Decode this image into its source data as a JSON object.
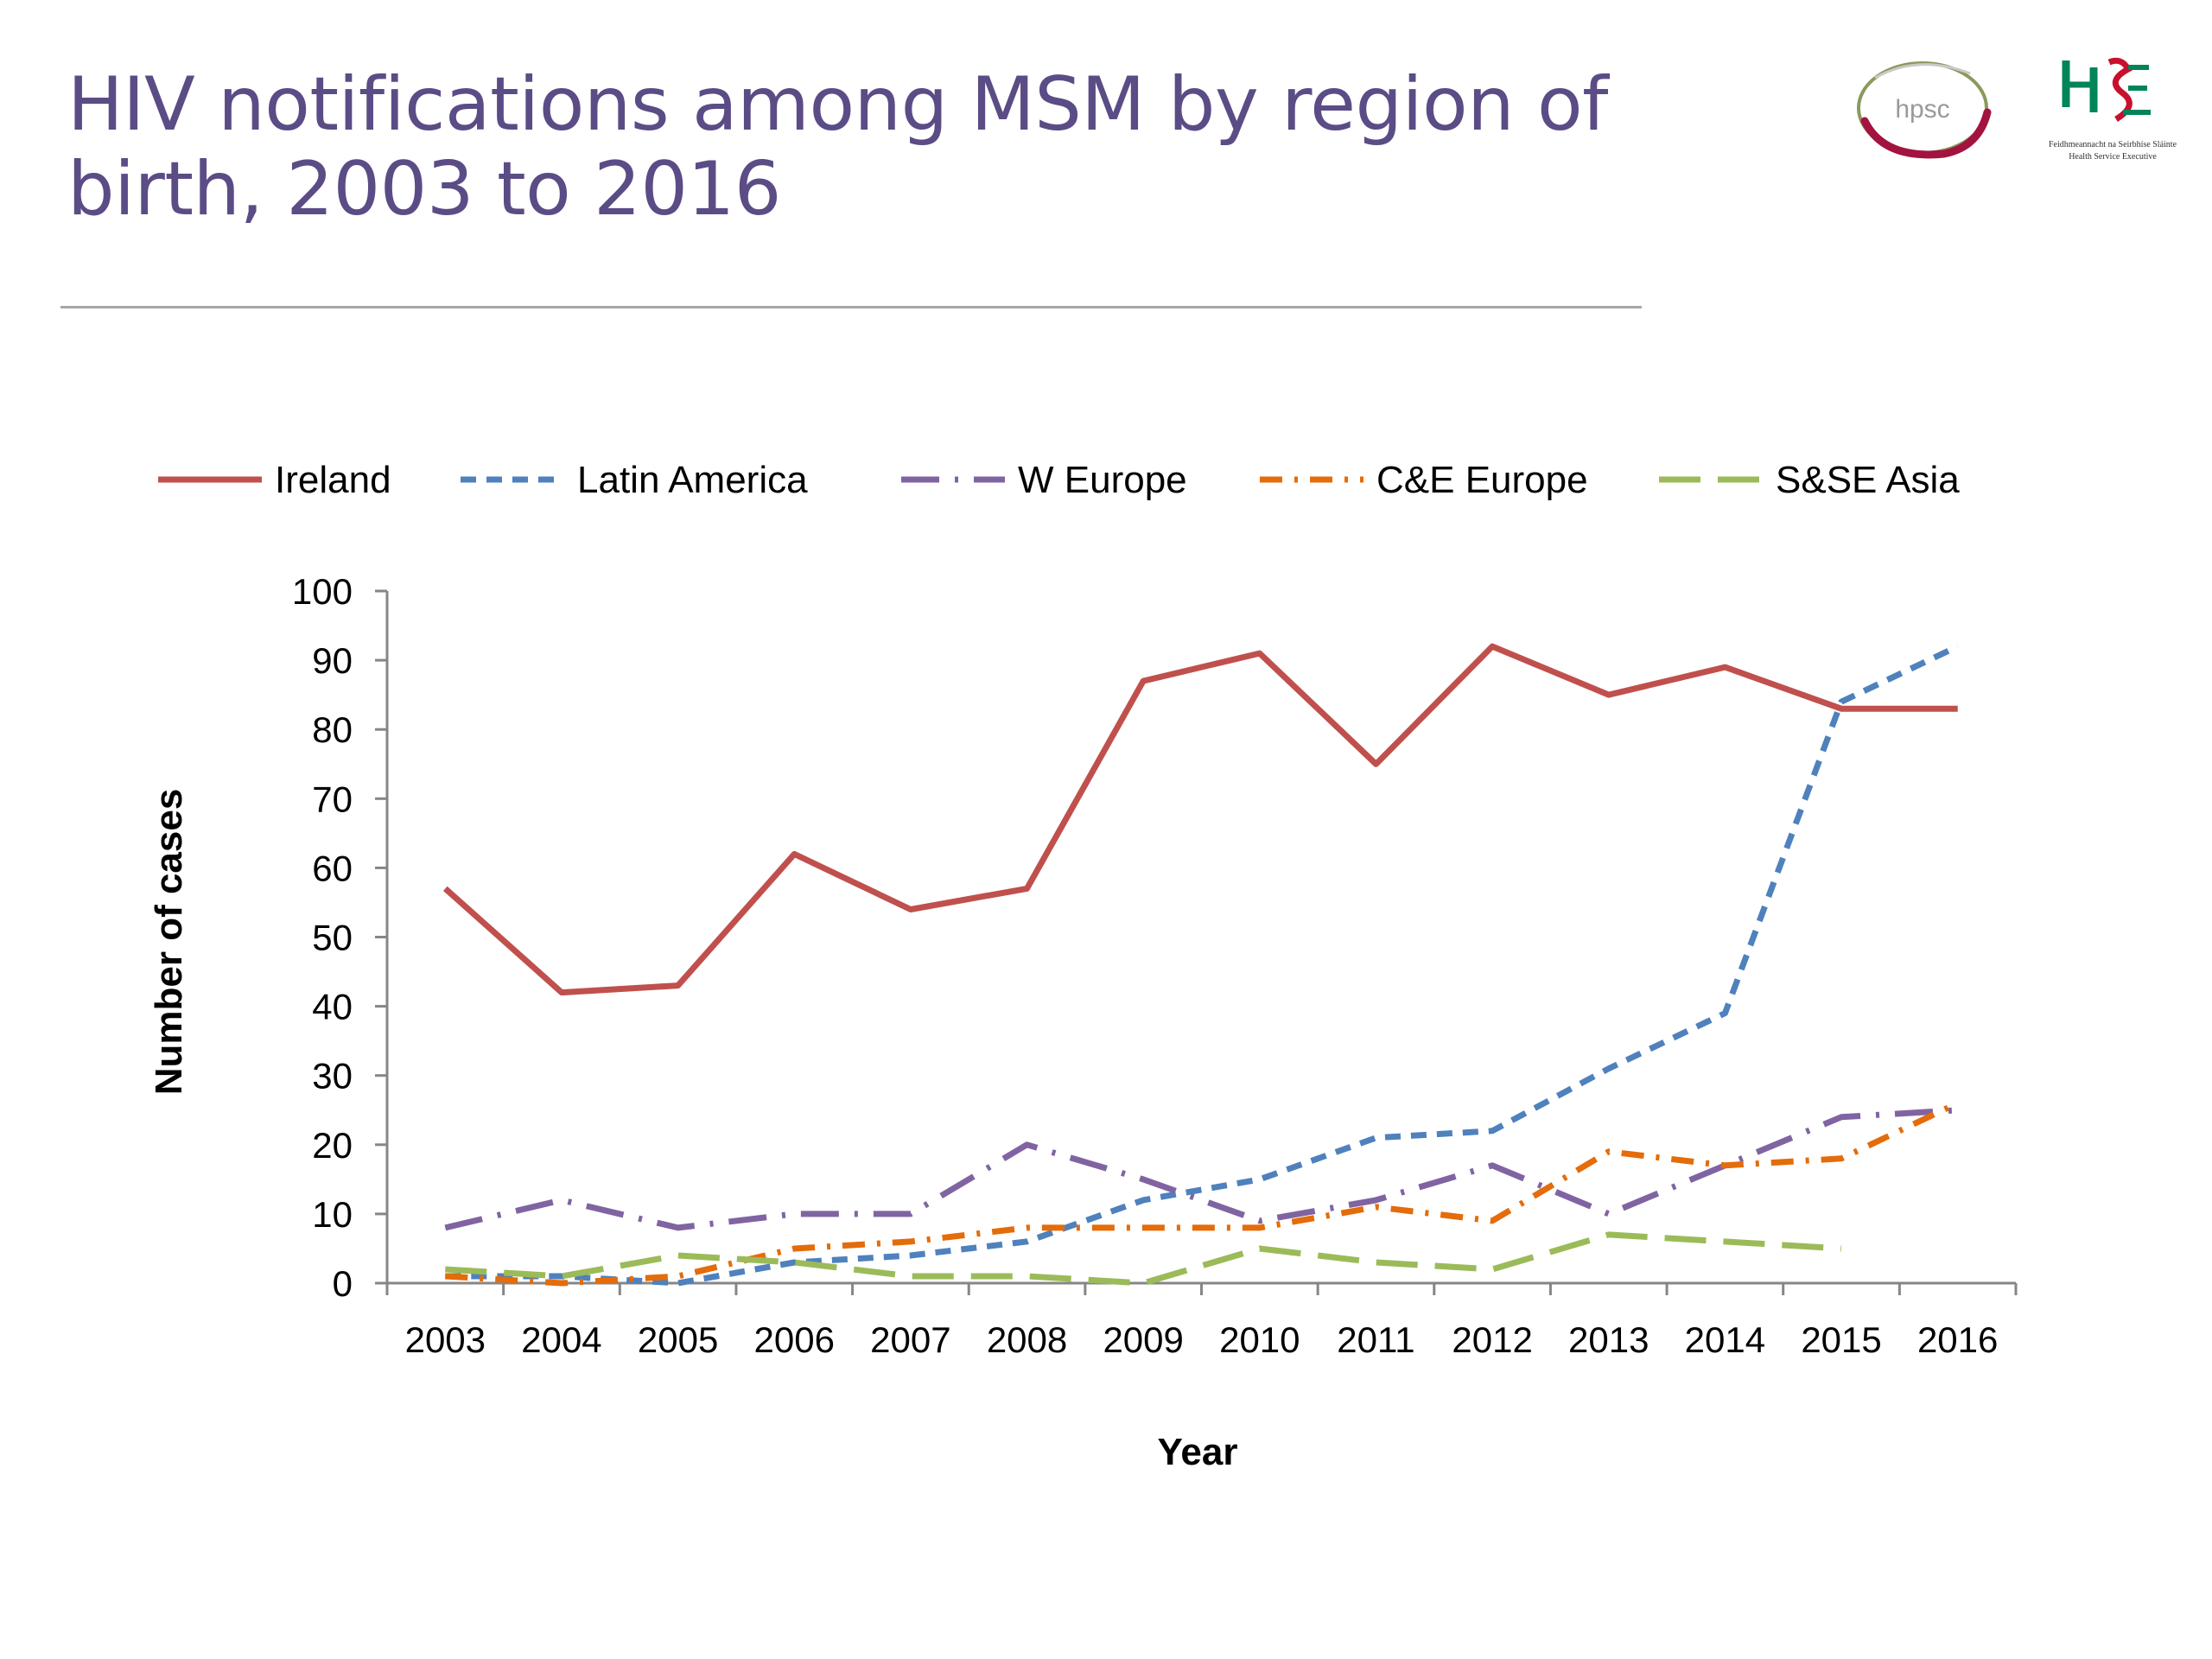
{
  "title": "HIV notifications among MSM by region of birth, 2003 to 2016",
  "logos": {
    "hpsc_text": "hpsc",
    "hse_text": "HSE",
    "hse_caption_1": "Feidhmeannacht na Seirbhíse Sláinte",
    "hse_caption_2": "Health Service Executive"
  },
  "colors": {
    "title": "#5b4c86",
    "ireland": "#c0504d",
    "latin_america": "#4f81bd",
    "w_europe": "#8064a2",
    "ce_europe": "#e46c0a",
    "sse_asia": "#9bbb59"
  },
  "chart_data": {
    "type": "line",
    "title": "",
    "xlabel": "Year",
    "ylabel": "Number of cases",
    "ylim": [
      0,
      100
    ],
    "yticks": [
      0,
      10,
      20,
      30,
      40,
      50,
      60,
      70,
      80,
      90,
      100
    ],
    "grid": false,
    "legend_position": "top",
    "categories": [
      "2003",
      "2004",
      "2005",
      "2006",
      "2007",
      "2008",
      "2009",
      "2010",
      "2011",
      "2012",
      "2013",
      "2014",
      "2015",
      "2016"
    ],
    "series": [
      {
        "name": "Ireland",
        "color": "#c0504d",
        "dash": "solid",
        "values": [
          57,
          42,
          43,
          62,
          54,
          57,
          87,
          91,
          75,
          92,
          85,
          89,
          83,
          83
        ]
      },
      {
        "name": "Latin America",
        "color": "#4f81bd",
        "dash": "dash",
        "values": [
          1,
          1,
          0,
          3,
          4,
          6,
          12,
          15,
          21,
          22,
          31,
          39,
          84,
          92
        ]
      },
      {
        "name": "W Europe",
        "color": "#8064a2",
        "dash": "longdashdot",
        "values": [
          8,
          12,
          8,
          10,
          10,
          20,
          15,
          9,
          12,
          17,
          10,
          17,
          24,
          25
        ]
      },
      {
        "name": "C&E Europe",
        "color": "#e46c0a",
        "dash": "dashdot",
        "values": [
          1,
          0,
          1,
          5,
          6,
          8,
          8,
          8,
          11,
          9,
          19,
          17,
          18,
          26
        ]
      },
      {
        "name": "S&SE Asia",
        "color": "#9bbb59",
        "dash": "longdash",
        "values": [
          2,
          1,
          4,
          3,
          1,
          1,
          0,
          5,
          3,
          2,
          7,
          6,
          5,
          null
        ]
      }
    ]
  }
}
